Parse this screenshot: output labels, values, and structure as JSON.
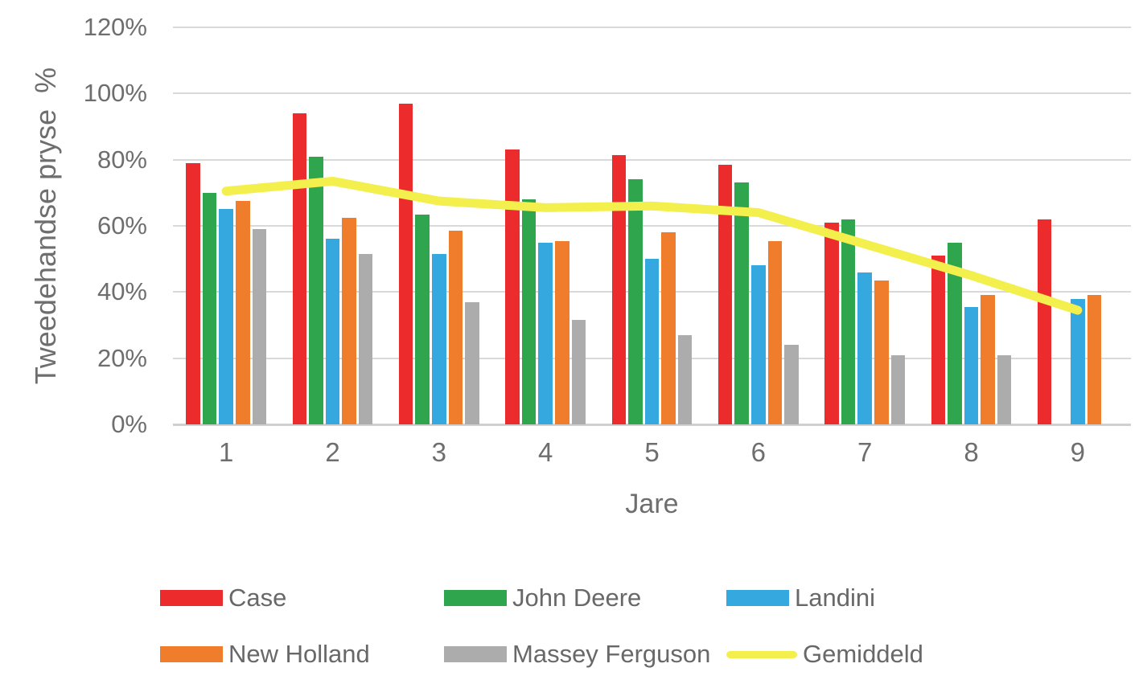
{
  "chart_data": {
    "type": "bar",
    "title": "",
    "xlabel": "Jare",
    "ylabel": "Tweedehandse pryse  %",
    "categories": [
      "1",
      "2",
      "3",
      "4",
      "5",
      "6",
      "7",
      "8",
      "9"
    ],
    "y_ticks": [
      {
        "value": 0,
        "label": "0%"
      },
      {
        "value": 20,
        "label": "20%"
      },
      {
        "value": 40,
        "label": "40%"
      },
      {
        "value": 60,
        "label": "60%"
      },
      {
        "value": 80,
        "label": "80%"
      },
      {
        "value": 100,
        "label": "100%"
      },
      {
        "value": 120,
        "label": "120%"
      }
    ],
    "ylim": [
      0,
      120
    ],
    "grid": true,
    "legend_position": "bottom",
    "series": [
      {
        "name": "Case",
        "type": "bar",
        "color": "#ec2b2d",
        "values": [
          79,
          94,
          97,
          83,
          81.5,
          78.5,
          61,
          51,
          62
        ]
      },
      {
        "name": "John Deere",
        "type": "bar",
        "color": "#2fa64d",
        "values": [
          70,
          81,
          63.5,
          68,
          74,
          73,
          62,
          55,
          null
        ]
      },
      {
        "name": "Landini",
        "type": "bar",
        "color": "#35a8df",
        "values": [
          65,
          56,
          51.5,
          55,
          50,
          48,
          46,
          35.5,
          38
        ]
      },
      {
        "name": "New Holland",
        "type": "bar",
        "color": "#f07d2c",
        "values": [
          67.5,
          62.5,
          58.5,
          55.5,
          58,
          55.5,
          43.5,
          39,
          39
        ]
      },
      {
        "name": "Massey Ferguson",
        "type": "bar",
        "color": "#acacac",
        "values": [
          59,
          51.5,
          37,
          31.5,
          27,
          24,
          21,
          21,
          null
        ]
      },
      {
        "name": "Gemiddeld",
        "type": "line",
        "color": "#f3ef4d",
        "values": [
          70.5,
          73.5,
          67.5,
          65.5,
          66,
          64,
          54.5,
          45,
          34.5
        ]
      }
    ],
    "style": {
      "gridline_color": "#d9d9d9",
      "baseline_color": "#d0d0d0",
      "axis_text_color": "#6e6e6e",
      "legend_text_color": "#686868",
      "line_width": 11
    }
  }
}
